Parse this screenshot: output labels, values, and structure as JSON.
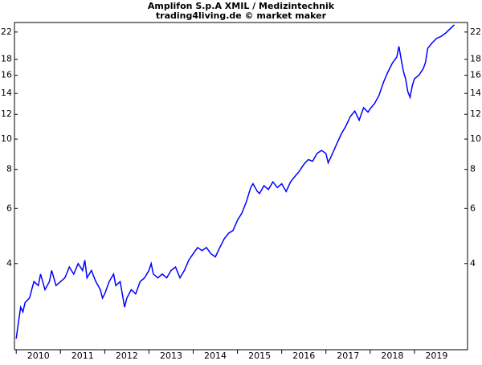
{
  "chart_data": {
    "type": "line",
    "title": "Amplifon S.p.A XMIL / Medizintechnik",
    "subtitle": "trading4living.de © market maker",
    "log_scale": true,
    "grid": false,
    "xlim": [
      2009.96,
      2020.2
    ],
    "xticks": [
      2010,
      2011,
      2012,
      2013,
      2014,
      2015,
      2016,
      2017,
      2018,
      2019
    ],
    "ylim": [
      2.12,
      23.6
    ],
    "yticks": [
      4,
      6,
      8,
      10,
      12,
      14,
      16,
      18,
      22
    ],
    "series": [
      {
        "name": "Amplifon S.p.A XMIL",
        "color": "#0000ff",
        "x": [
          2010.0,
          2010.05,
          2010.1,
          2010.15,
          2010.2,
          2010.3,
          2010.35,
          2010.4,
          2010.5,
          2010.55,
          2010.65,
          2010.75,
          2010.8,
          2010.9,
          2011.0,
          2011.1,
          2011.2,
          2011.3,
          2011.4,
          2011.5,
          2011.55,
          2011.6,
          2011.7,
          2011.8,
          2011.9,
          2011.95,
          2012.0,
          2012.1,
          2012.2,
          2012.25,
          2012.35,
          2012.45,
          2012.5,
          2012.6,
          2012.7,
          2012.8,
          2012.9,
          2013.0,
          2013.05,
          2013.1,
          2013.2,
          2013.3,
          2013.4,
          2013.5,
          2013.6,
          2013.7,
          2013.8,
          2013.9,
          2014.0,
          2014.1,
          2014.2,
          2014.3,
          2014.4,
          2014.5,
          2014.6,
          2014.7,
          2014.8,
          2014.9,
          2015.0,
          2015.1,
          2015.2,
          2015.3,
          2015.35,
          2015.45,
          2015.5,
          2015.6,
          2015.7,
          2015.8,
          2015.9,
          2016.0,
          2016.1,
          2016.2,
          2016.3,
          2016.4,
          2016.5,
          2016.6,
          2016.7,
          2016.8,
          2016.9,
          2017.0,
          2017.05,
          2017.15,
          2017.25,
          2017.35,
          2017.45,
          2017.55,
          2017.65,
          2017.75,
          2017.85,
          2017.95,
          2018.0,
          2018.1,
          2018.2,
          2018.3,
          2018.4,
          2018.5,
          2018.6,
          2018.65,
          2018.7,
          2018.75,
          2018.8,
          2018.85,
          2018.9,
          2018.95,
          2019.0,
          2019.1,
          2019.2,
          2019.25,
          2019.3,
          2019.4,
          2019.5,
          2019.6,
          2019.7,
          2019.8,
          2019.9
        ],
        "values": [
          2.3,
          2.6,
          2.9,
          2.8,
          3.0,
          3.1,
          3.3,
          3.5,
          3.4,
          3.7,
          3.3,
          3.5,
          3.8,
          3.4,
          3.5,
          3.6,
          3.9,
          3.7,
          4.0,
          3.8,
          4.1,
          3.6,
          3.8,
          3.5,
          3.3,
          3.1,
          3.2,
          3.5,
          3.7,
          3.4,
          3.5,
          2.9,
          3.1,
          3.3,
          3.2,
          3.5,
          3.6,
          3.8,
          4.0,
          3.7,
          3.6,
          3.7,
          3.6,
          3.8,
          3.9,
          3.6,
          3.8,
          4.1,
          4.3,
          4.5,
          4.4,
          4.5,
          4.3,
          4.2,
          4.5,
          4.8,
          5.0,
          5.1,
          5.5,
          5.8,
          6.3,
          7.0,
          7.2,
          6.8,
          6.7,
          7.1,
          6.9,
          7.3,
          7.0,
          7.2,
          6.8,
          7.3,
          7.6,
          7.9,
          8.3,
          8.6,
          8.5,
          9.0,
          9.2,
          9.0,
          8.4,
          9.0,
          9.7,
          10.4,
          11.0,
          11.8,
          12.3,
          11.5,
          12.6,
          12.2,
          12.5,
          13.0,
          13.8,
          15.2,
          16.4,
          17.5,
          18.3,
          19.8,
          18.0,
          16.5,
          15.6,
          14.2,
          13.6,
          14.8,
          15.6,
          16.0,
          16.8,
          17.6,
          19.5,
          20.3,
          21.0,
          21.3,
          21.8,
          22.5,
          23.2
        ]
      }
    ]
  }
}
